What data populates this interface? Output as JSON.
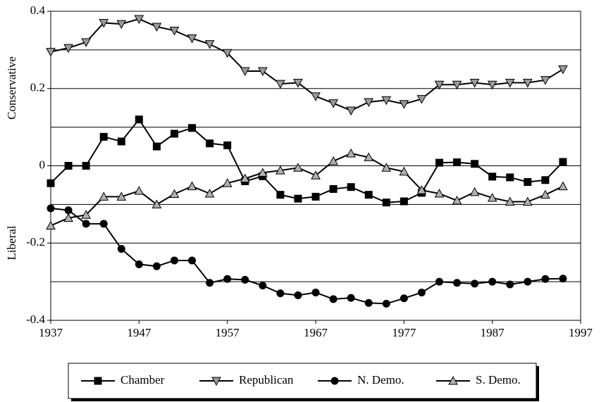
{
  "chart_data": {
    "type": "line",
    "ylabel_top": "Conservative",
    "ylabel_bottom": "Liberal",
    "x": [
      1937,
      1939,
      1941,
      1943,
      1945,
      1947,
      1949,
      1951,
      1953,
      1955,
      1957,
      1959,
      1961,
      1963,
      1965,
      1967,
      1969,
      1971,
      1973,
      1975,
      1977,
      1979,
      1981,
      1983,
      1985,
      1987,
      1989,
      1991,
      1993,
      1995
    ],
    "series": [
      {
        "name": "Chamber",
        "color": "#000000",
        "marker": "square",
        "values": [
          -0.045,
          0.0,
          0.0,
          0.075,
          0.063,
          0.12,
          0.05,
          0.083,
          0.098,
          0.058,
          0.053,
          -0.04,
          -0.027,
          -0.075,
          -0.085,
          -0.08,
          -0.06,
          -0.055,
          -0.075,
          -0.095,
          -0.092,
          -0.07,
          0.008,
          0.009,
          0.005,
          -0.028,
          -0.03,
          -0.042,
          -0.037,
          0.01
        ]
      },
      {
        "name": "Republican",
        "color": "#999999",
        "marker": "triangle-down",
        "values": [
          0.295,
          0.305,
          0.32,
          0.37,
          0.367,
          0.38,
          0.36,
          0.35,
          0.33,
          0.315,
          0.292,
          0.245,
          0.245,
          0.212,
          0.215,
          0.18,
          0.162,
          0.143,
          0.165,
          0.17,
          0.16,
          0.173,
          0.21,
          0.21,
          0.215,
          0.21,
          0.215,
          0.215,
          0.222,
          0.25
        ]
      },
      {
        "name": "N. Demo.",
        "color": "#000000",
        "marker": "circle",
        "values": [
          -0.11,
          -0.115,
          -0.15,
          -0.15,
          -0.215,
          -0.255,
          -0.26,
          -0.245,
          -0.245,
          -0.303,
          -0.293,
          -0.295,
          -0.31,
          -0.33,
          -0.335,
          -0.328,
          -0.345,
          -0.342,
          -0.355,
          -0.357,
          -0.343,
          -0.328,
          -0.3,
          -0.303,
          -0.305,
          -0.3,
          -0.307,
          -0.3,
          -0.293,
          -0.292
        ]
      },
      {
        "name": "S. Demo.",
        "color": "#b0b0b0",
        "marker": "triangle-up",
        "values": [
          -0.155,
          -0.135,
          -0.127,
          -0.08,
          -0.08,
          -0.065,
          -0.1,
          -0.073,
          -0.053,
          -0.072,
          -0.045,
          -0.033,
          -0.018,
          -0.012,
          -0.005,
          -0.025,
          0.012,
          0.032,
          0.022,
          -0.005,
          -0.015,
          -0.063,
          -0.072,
          -0.09,
          -0.068,
          -0.083,
          -0.093,
          -0.093,
          -0.075,
          -0.053
        ]
      }
    ],
    "xlim": [
      1937,
      1997
    ],
    "xticks": [
      1937,
      1947,
      1957,
      1967,
      1977,
      1987,
      1997
    ],
    "ylim": [
      -0.4,
      0.4
    ],
    "yticks": [
      0.4,
      0.2,
      0,
      -0.2,
      -0.4
    ],
    "ygrid": [
      0.3,
      0.2,
      0.1,
      0,
      -0.1,
      -0.2,
      -0.3
    ]
  }
}
